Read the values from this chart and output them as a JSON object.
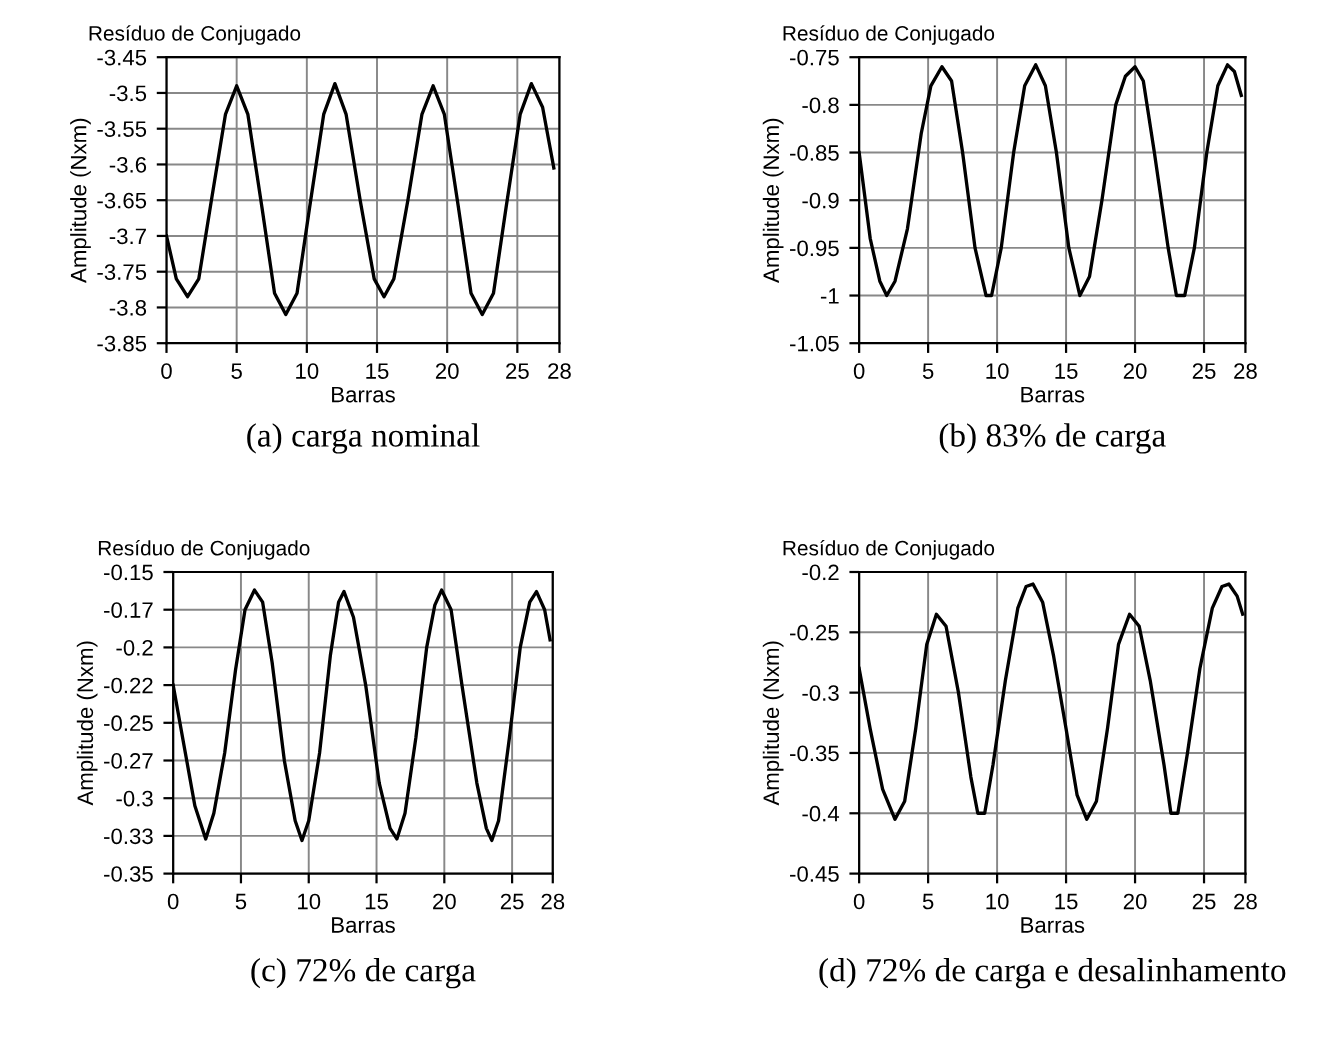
{
  "chart_data": [
    {
      "type": "line",
      "title": "Resíduo de Conjugado",
      "xlabel": "Barras",
      "ylabel": "Amplitude (Nxm)",
      "annotations": [
        "(a) carga nominal"
      ],
      "grid": true,
      "legend": false,
      "xlim": [
        0,
        28
      ],
      "xticks": [
        0,
        5,
        10,
        15,
        20,
        25,
        28
      ],
      "ylim": [
        -3.85,
        -3.45
      ],
      "yticks": [
        -3.85,
        -3.8,
        -3.75,
        -3.7,
        -3.65,
        -3.6,
        -3.55,
        -3.5,
        -3.45
      ],
      "series": [
        {
          "color": "#000000",
          "x": [
            0,
            0.7,
            1.5,
            2.3,
            3.2,
            4.2,
            5,
            5.8,
            6.8,
            7.7,
            8.5,
            9.3,
            10.2,
            11.2,
            12,
            12.8,
            13.8,
            14.8,
            15.5,
            16.2,
            17.2,
            18.2,
            19,
            19.8,
            20.8,
            21.7,
            22.5,
            23.3,
            24.2,
            25.2,
            26,
            26.8,
            27.6
          ],
          "values": [
            -3.7,
            -3.76,
            -3.785,
            -3.76,
            -3.65,
            -3.53,
            -3.49,
            -3.53,
            -3.66,
            -3.78,
            -3.81,
            -3.78,
            -3.66,
            -3.53,
            -3.487,
            -3.53,
            -3.65,
            -3.76,
            -3.785,
            -3.76,
            -3.65,
            -3.53,
            -3.49,
            -3.53,
            -3.66,
            -3.78,
            -3.81,
            -3.78,
            -3.66,
            -3.53,
            -3.487,
            -3.52,
            -3.605
          ]
        }
      ]
    },
    {
      "type": "line",
      "title": "Resíduo de Conjugado",
      "xlabel": "Barras",
      "ylabel": "Amplitude (Nxm)",
      "annotations": [
        "(b) 83% de carga"
      ],
      "grid": true,
      "legend": false,
      "xlim": [
        0,
        28
      ],
      "xticks": [
        0,
        5,
        10,
        15,
        20,
        25,
        28
      ],
      "ylim": [
        -1.05,
        -0.75
      ],
      "yticks": [
        {
          "value": -1.05,
          "label": "-1.05"
        },
        {
          "value": -1.0,
          "label": "-1"
        },
        {
          "value": -0.95,
          "label": "-0.95"
        },
        {
          "value": -0.9,
          "label": "-0.9"
        },
        {
          "value": -0.85,
          "label": "-0.85"
        },
        {
          "value": -0.8,
          "label": "-0.8"
        },
        {
          "value": -0.75,
          "label": "-0.75"
        }
      ],
      "series": [
        {
          "color": "#000000",
          "x": [
            0,
            0.8,
            1.5,
            2,
            2.6,
            3.5,
            4.5,
            5.2,
            6,
            6.7,
            7.5,
            8.4,
            9.2,
            9.6,
            10.3,
            11.2,
            12,
            12.8,
            13.5,
            14.3,
            15.2,
            16,
            16.7,
            17.6,
            18.6,
            19.3,
            20,
            20.6,
            21.4,
            22.4,
            23,
            23.6,
            24.3,
            25.2,
            26,
            26.7,
            27.2,
            27.7
          ],
          "values": [
            -0.85,
            -0.94,
            -0.985,
            -1.0,
            -0.985,
            -0.93,
            -0.83,
            -0.78,
            -0.76,
            -0.775,
            -0.85,
            -0.95,
            -1.0,
            -1.0,
            -0.95,
            -0.85,
            -0.78,
            -0.758,
            -0.78,
            -0.85,
            -0.95,
            -1.0,
            -0.98,
            -0.9,
            -0.8,
            -0.77,
            -0.76,
            -0.775,
            -0.85,
            -0.95,
            -1.0,
            -1.0,
            -0.95,
            -0.85,
            -0.78,
            -0.758,
            -0.765,
            -0.79
          ]
        }
      ]
    },
    {
      "type": "line",
      "title": "Resíduo de Conjugado",
      "xlabel": "Barras",
      "ylabel": "Amplitude (Nxm)",
      "annotations": [
        "(c) 72% de carga"
      ],
      "grid": true,
      "legend": false,
      "xlim": [
        0,
        28
      ],
      "xticks": [
        0,
        5,
        10,
        15,
        20,
        25,
        28
      ],
      "ylim": [
        -0.35,
        -0.15
      ],
      "yticks": [
        {
          "value": -0.35,
          "label": "-0.35"
        },
        {
          "value": -0.325,
          "label": "-0.33"
        },
        {
          "value": -0.3,
          "label": "-0.3"
        },
        {
          "value": -0.275,
          "label": "-0.27"
        },
        {
          "value": -0.25,
          "label": "-0.25"
        },
        {
          "value": -0.225,
          "label": "-0.22"
        },
        {
          "value": -0.2,
          "label": "-0.2"
        },
        {
          "value": -0.175,
          "label": "-0.17"
        },
        {
          "value": -0.15,
          "label": "-0.15"
        }
      ],
      "series": [
        {
          "color": "#000000",
          "x": [
            0,
            0.8,
            1.6,
            2.4,
            3.0,
            3.8,
            4.6,
            5.3,
            6,
            6.6,
            7.3,
            8.2,
            9,
            9.5,
            10,
            10.8,
            11.6,
            12.2,
            12.6,
            13.3,
            14.2,
            15.2,
            16,
            16.5,
            17.1,
            17.9,
            18.7,
            19.3,
            19.8,
            20.5,
            21.3,
            22.4,
            23.1,
            23.5,
            24,
            24.8,
            25.6,
            26.3,
            26.8,
            27.4,
            27.8
          ],
          "values": [
            -0.225,
            -0.265,
            -0.305,
            -0.327,
            -0.31,
            -0.27,
            -0.215,
            -0.175,
            -0.162,
            -0.17,
            -0.21,
            -0.275,
            -0.315,
            -0.328,
            -0.315,
            -0.27,
            -0.205,
            -0.17,
            -0.163,
            -0.18,
            -0.225,
            -0.29,
            -0.32,
            -0.327,
            -0.31,
            -0.26,
            -0.2,
            -0.172,
            -0.162,
            -0.175,
            -0.225,
            -0.29,
            -0.32,
            -0.328,
            -0.315,
            -0.26,
            -0.2,
            -0.17,
            -0.163,
            -0.175,
            -0.195
          ]
        }
      ]
    },
    {
      "type": "line",
      "title": "Resíduo de Conjugado",
      "xlabel": "Barras",
      "ylabel": "Amplitude (Nxm)",
      "annotations": [
        "(d) 72% de carga e desalinhamento"
      ],
      "grid": true,
      "legend": false,
      "xlim": [
        0,
        28
      ],
      "xticks": [
        0,
        5,
        10,
        15,
        20,
        25,
        28
      ],
      "ylim": [
        -0.45,
        -0.2
      ],
      "yticks": [
        {
          "value": -0.45,
          "label": "-0.45"
        },
        {
          "value": -0.4,
          "label": "-0.4"
        },
        {
          "value": -0.35,
          "label": "-0.35"
        },
        {
          "value": -0.3,
          "label": "-0.3"
        },
        {
          "value": -0.25,
          "label": "-0.25"
        },
        {
          "value": -0.2,
          "label": "-0.2"
        }
      ],
      "series": [
        {
          "color": "#000000",
          "x": [
            0,
            0.8,
            1.7,
            2.6,
            3.3,
            4.1,
            4.9,
            5.6,
            6.3,
            7.2,
            8.1,
            8.6,
            9.1,
            9.7,
            10.6,
            11.5,
            12.1,
            12.6,
            13.3,
            14.1,
            15,
            15.8,
            16.5,
            17.2,
            18,
            18.8,
            19.6,
            20.3,
            21.1,
            22.1,
            22.6,
            23.1,
            23.8,
            24.7,
            25.6,
            26.3,
            26.8,
            27.4,
            27.8
          ],
          "values": [
            -0.28,
            -0.33,
            -0.38,
            -0.405,
            -0.39,
            -0.33,
            -0.26,
            -0.235,
            -0.245,
            -0.3,
            -0.37,
            -0.4,
            -0.4,
            -0.36,
            -0.29,
            -0.23,
            -0.212,
            -0.21,
            -0.225,
            -0.27,
            -0.33,
            -0.385,
            -0.405,
            -0.39,
            -0.33,
            -0.26,
            -0.235,
            -0.245,
            -0.29,
            -0.36,
            -0.4,
            -0.4,
            -0.35,
            -0.28,
            -0.23,
            -0.212,
            -0.21,
            -0.22,
            -0.235
          ]
        }
      ]
    }
  ]
}
